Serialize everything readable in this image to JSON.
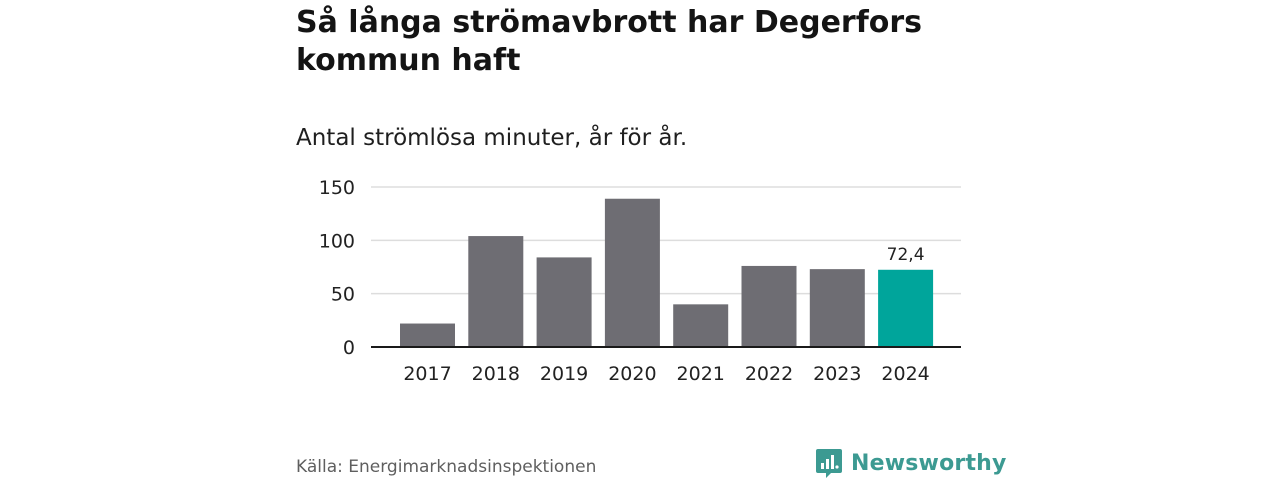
{
  "header": {
    "title": "Så långa strömavbrott har Degerfors kommun haft",
    "subtitle": "Antal strömlösa minuter, år för år."
  },
  "footer": {
    "source": "Källa: Energimarknadsinspektionen",
    "brand": "Newsworthy"
  },
  "colors": {
    "bar": "#6e6d73",
    "highlight": "#00a59b",
    "grid": "#dddddd",
    "axis": "#1a1a1a",
    "brand": "#3c9a92"
  },
  "chart_data": {
    "type": "bar",
    "title": "Så långa strömavbrott har Degerfors kommun haft",
    "subtitle": "Antal strömlösa minuter, år för år.",
    "xlabel": "",
    "ylabel": "",
    "categories": [
      "2017",
      "2018",
      "2019",
      "2020",
      "2021",
      "2022",
      "2023",
      "2024"
    ],
    "values": [
      22,
      104,
      84,
      139,
      40,
      76,
      73,
      72.4
    ],
    "ylim": [
      0,
      150
    ],
    "yticks": [
      0,
      50,
      100,
      150
    ],
    "ytick_labels": [
      "0",
      "50",
      "100",
      "150"
    ],
    "grid": true,
    "highlight_category": "2024",
    "data_labels": [
      {
        "category": "2024",
        "label": "72,4"
      }
    ]
  }
}
